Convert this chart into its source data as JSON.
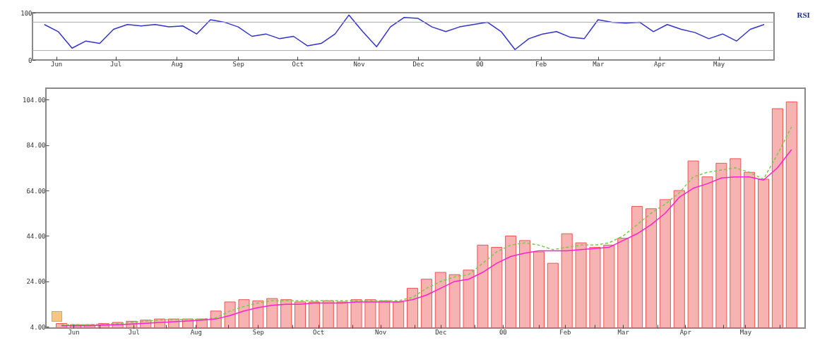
{
  "chart_data": [
    {
      "type": "line",
      "ylabel": "RSI",
      "x": [
        "1999-05-26",
        "1999-06-02",
        "1999-06-09",
        "1999-06-16",
        "1999-06-23",
        "1999-06-30",
        "1999-07-07",
        "1999-07-14",
        "1999-07-21",
        "1999-07-28",
        "1999-08-04",
        "1999-08-11",
        "1999-08-18",
        "1999-08-25",
        "1999-09-01",
        "1999-09-08",
        "1999-09-15",
        "1999-09-22",
        "1999-09-29",
        "1999-10-06",
        "1999-10-13",
        "1999-10-20",
        "1999-10-27",
        "1999-11-03",
        "1999-11-10",
        "1999-11-17",
        "1999-11-24",
        "1999-12-01",
        "1999-12-08",
        "1999-12-15",
        "1999-12-22",
        "1999-12-29",
        "2000-01-05",
        "2000-01-12",
        "2000-01-19",
        "2000-01-26",
        "2000-02-02",
        "2000-02-09",
        "2000-02-16",
        "2000-02-23",
        "2000-03-01",
        "2000-03-08",
        "2000-03-15",
        "2000-03-22",
        "2000-03-29",
        "2000-04-05",
        "2000-04-12",
        "2000-04-19",
        "2000-04-26",
        "2000-05-03",
        "2000-05-10",
        "2000-05-17",
        "2000-05-24"
      ],
      "series": [
        {
          "color": "#3333cc",
          "values": [
            75,
            60,
            25,
            40,
            35,
            65,
            75,
            72,
            75,
            70,
            72,
            55,
            85,
            80,
            70,
            50,
            55,
            45,
            50,
            30,
            35,
            55,
            95,
            60,
            28,
            70,
            90,
            88,
            70,
            60,
            70,
            75,
            80,
            60,
            22,
            45,
            55,
            60,
            48,
            45,
            85,
            80,
            78,
            80,
            60,
            75,
            65,
            58,
            45,
            55,
            40,
            65,
            75
          ]
        }
      ],
      "xlim": [
        "1999-05-20",
        "2000-05-29"
      ],
      "xticks": [
        {
          "value": "1999-06-01",
          "label": "Jun"
        },
        {
          "value": "1999-07-01",
          "label": "Jul"
        },
        {
          "value": "1999-08-01",
          "label": "Aug"
        },
        {
          "value": "1999-09-01",
          "label": "Sep"
        },
        {
          "value": "1999-10-01",
          "label": "Oct"
        },
        {
          "value": "1999-11-01",
          "label": "Nov"
        },
        {
          "value": "1999-12-01",
          "label": "Dec"
        },
        {
          "value": "2000-01-01",
          "label": "00"
        },
        {
          "value": "2000-02-01",
          "label": "Feb"
        },
        {
          "value": "2000-03-01",
          "label": "Mar"
        },
        {
          "value": "2000-04-01",
          "label": "Apr"
        },
        {
          "value": "2000-05-01",
          "label": "May"
        }
      ],
      "ylim": [
        0,
        100
      ],
      "yticks": [
        0,
        100
      ],
      "ref_lines": [
        {
          "axis": "y",
          "value": 80,
          "color": "#aaaaaa"
        },
        {
          "axis": "y",
          "value": 20,
          "color": "#aaaaaa"
        }
      ],
      "marker": "none",
      "grid": false
    },
    {
      "type": "bar",
      "x": [
        "1999-05-26",
        "1999-06-02",
        "1999-06-09",
        "1999-06-16",
        "1999-06-23",
        "1999-06-30",
        "1999-07-07",
        "1999-07-14",
        "1999-07-21",
        "1999-07-28",
        "1999-08-04",
        "1999-08-11",
        "1999-08-18",
        "1999-08-25",
        "1999-09-01",
        "1999-09-08",
        "1999-09-15",
        "1999-09-22",
        "1999-09-29",
        "1999-10-06",
        "1999-10-13",
        "1999-10-20",
        "1999-10-27",
        "1999-11-03",
        "1999-11-10",
        "1999-11-17",
        "1999-11-24",
        "1999-12-01",
        "1999-12-08",
        "1999-12-15",
        "1999-12-22",
        "1999-12-29",
        "2000-01-05",
        "2000-01-12",
        "2000-01-19",
        "2000-01-26",
        "2000-02-02",
        "2000-02-09",
        "2000-02-16",
        "2000-02-23",
        "2000-03-01",
        "2000-03-08",
        "2000-03-15",
        "2000-03-22",
        "2000-03-29",
        "2000-04-05",
        "2000-04-12",
        "2000-04-19",
        "2000-04-26",
        "2000-05-03",
        "2000-05-10",
        "2000-05-17",
        "2000-05-24"
      ],
      "series": [
        {
          "color": "#ee5555",
          "values": [
            5.5,
            5,
            5,
            5.5,
            6,
            6.5,
            7,
            7.5,
            7.5,
            7.5,
            7.5,
            11,
            15,
            16,
            15.5,
            16.5,
            16,
            15,
            15,
            15.5,
            15,
            16,
            16,
            15.5,
            15,
            21,
            25,
            28,
            27,
            29,
            40,
            39,
            44,
            42,
            37,
            32,
            45,
            41,
            39,
            40,
            43,
            57,
            56,
            60,
            64,
            77,
            70,
            76,
            78,
            72,
            69,
            100,
            103
          ]
        },
        {
          "type": "line",
          "color": "#77cc44",
          "line_style": "dashed",
          "values": [
            5,
            5,
            5,
            5.2,
            5.5,
            6,
            6.5,
            7,
            7.2,
            7.3,
            7.4,
            8,
            11,
            13,
            14.5,
            15.5,
            15.5,
            15.5,
            15.5,
            15.5,
            15.5,
            15.5,
            15.5,
            15.5,
            15.5,
            17,
            21,
            24,
            26,
            27,
            32,
            37,
            40,
            41,
            40,
            38,
            39,
            40,
            40,
            41,
            44,
            49,
            54,
            58,
            63,
            70,
            72,
            73,
            74,
            72,
            69,
            80,
            92
          ]
        },
        {
          "type": "line",
          "color": "#ff22cc",
          "line_style": "solid",
          "values": [
            4.5,
            4.5,
            4.5,
            4.8,
            5,
            5.3,
            5.6,
            6,
            6.3,
            6.6,
            7,
            7.5,
            9,
            11,
            12.5,
            13.5,
            14,
            14,
            14.5,
            14.5,
            14.5,
            15,
            15,
            15,
            15,
            16,
            18,
            21,
            24,
            25,
            28,
            32,
            35,
            36.5,
            37.5,
            37.5,
            37.5,
            38,
            38.5,
            39,
            42,
            45,
            49,
            54,
            61,
            65,
            67,
            69.5,
            70,
            70,
            68.6,
            74,
            82
          ]
        }
      ],
      "xlim": [
        "1999-05-20",
        "2000-05-29"
      ],
      "xticks": [
        {
          "value": "1999-06-01",
          "label": "Jun"
        },
        {
          "value": "1999-06-14",
          "label": null
        },
        {
          "value": "1999-07-01",
          "label": "Jul"
        },
        {
          "value": "1999-07-17",
          "label": null
        },
        {
          "value": "1999-08-01",
          "label": "Aug"
        },
        {
          "value": "1999-08-17",
          "label": null
        },
        {
          "value": "1999-09-01",
          "label": "Sep"
        },
        {
          "value": "1999-09-18",
          "label": null
        },
        {
          "value": "1999-10-01",
          "label": "Oct"
        },
        {
          "value": "1999-10-18",
          "label": null
        },
        {
          "value": "1999-11-01",
          "label": "Nov"
        },
        {
          "value": "1999-11-18",
          "label": null
        },
        {
          "value": "1999-12-01",
          "label": "Dec"
        },
        {
          "value": "1999-12-18",
          "label": null
        },
        {
          "value": "2000-01-01",
          "label": "00"
        },
        {
          "value": "2000-01-19",
          "label": null
        },
        {
          "value": "2000-02-01",
          "label": "Feb"
        },
        {
          "value": "2000-02-16",
          "label": null
        },
        {
          "value": "2000-03-01",
          "label": "Mar"
        },
        {
          "value": "2000-03-18",
          "label": null
        },
        {
          "value": "2000-04-01",
          "label": "Apr"
        },
        {
          "value": "2000-04-20",
          "label": null
        },
        {
          "value": "2000-05-01",
          "label": "May"
        },
        {
          "value": "2000-05-18",
          "label": null
        }
      ],
      "ylim": [
        3.5,
        109
      ],
      "yticks": [
        {
          "value": 4,
          "label": "4.00"
        },
        {
          "value": 24,
          "label": "24.00"
        },
        {
          "value": 44,
          "label": "44.00"
        },
        {
          "value": 64,
          "label": "64.00"
        },
        {
          "value": 84,
          "label": "84.00"
        },
        {
          "value": 104,
          "label": "104.00"
        }
      ],
      "marker": "none",
      "grid": false
    }
  ]
}
